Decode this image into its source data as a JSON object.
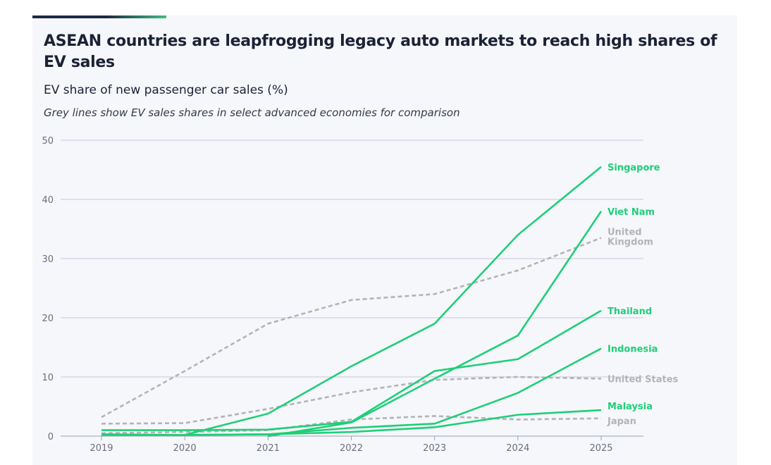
{
  "chart_data": {
    "type": "line",
    "title": "ASEAN countries are leapfrogging legacy auto markets to reach high shares of EV sales",
    "subtitle": "EV share of new passenger car sales (%)",
    "note": "Grey lines show EV sales shares in select advanced economies for comparison",
    "x": [
      2019,
      2020,
      2021,
      2022,
      2023,
      2024,
      2025
    ],
    "ylim": [
      0,
      50
    ],
    "yticks": [
      0,
      10,
      20,
      30,
      40,
      50
    ],
    "grid": true,
    "colors": {
      "asean": "#1fcf78",
      "comparison": "#b3b3b8"
    },
    "series": [
      {
        "name": "Singapore",
        "group": "asean",
        "values": [
          0.3,
          0.2,
          3.8,
          11.8,
          19,
          34,
          45.5
        ]
      },
      {
        "name": "Viet Nam",
        "group": "asean",
        "values": [
          null,
          null,
          0,
          2.3,
          9.7,
          17,
          38
        ]
      },
      {
        "name": "Thailand",
        "group": "asean",
        "values": [
          1.0,
          1.0,
          1.1,
          2.4,
          11,
          13,
          21.2
        ]
      },
      {
        "name": "Indonesia",
        "group": "asean",
        "values": [
          0.2,
          0.2,
          0.3,
          1.4,
          2.1,
          7.3,
          14.8
        ]
      },
      {
        "name": "Malaysia",
        "group": "asean",
        "values": [
          0.2,
          0.2,
          0.3,
          0.7,
          1.5,
          3.6,
          4.4
        ]
      },
      {
        "name": "United Kingdom",
        "label_lines": [
          "United",
          "Kingdom"
        ],
        "group": "comparison",
        "values": [
          3.2,
          11,
          19,
          23,
          24,
          28,
          33.5
        ]
      },
      {
        "name": "United States",
        "group": "comparison",
        "values": [
          2.1,
          2.2,
          4.6,
          7.4,
          9.5,
          10,
          9.7
        ]
      },
      {
        "name": "Japan",
        "group": "comparison",
        "values": [
          0.5,
          0.7,
          1.0,
          2.8,
          3.4,
          2.8,
          3.0
        ]
      }
    ]
  }
}
